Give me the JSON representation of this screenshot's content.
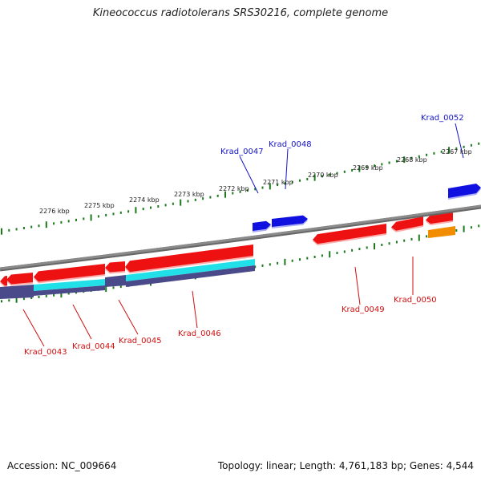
{
  "title": "Kineococcus radiotolerans SRS30216, complete genome",
  "footer": {
    "accession": "Accession: NC_009664",
    "summary": "Topology: linear; Length: 4,761,183 bp; Genes: 4,544"
  },
  "colors": {
    "backbone": "#8a8a8a",
    "tick": "#1a7a1a",
    "gene_forward": "#1010e0",
    "gene_reverse": "#ee1111",
    "cds_cyan": "#22e0e8",
    "cds_purple": "#4a4a8a",
    "gene_orange": "#f28c00",
    "label_forward": "#1414c8",
    "label_reverse": "#d01010"
  },
  "scale_labels": [
    "2276 kbp",
    "2275 kbp",
    "2274 kbp",
    "2273 kbp",
    "2272 kbp",
    "2271 kbp",
    "2270 kbp",
    "2269 kbp",
    "2268 kbp",
    "2267 kbp"
  ],
  "gene_labels": [
    {
      "text": "Krad_0047",
      "strand": "forward"
    },
    {
      "text": "Krad_0048",
      "strand": "forward"
    },
    {
      "text": "Krad_0052",
      "strand": "forward"
    },
    {
      "text": "Krad_0043",
      "strand": "reverse"
    },
    {
      "text": "Krad_0044",
      "strand": "reverse"
    },
    {
      "text": "Krad_0045",
      "strand": "reverse"
    },
    {
      "text": "Krad_0046",
      "strand": "reverse"
    },
    {
      "text": "Krad_0049",
      "strand": "reverse"
    },
    {
      "text": "Krad_0050",
      "strand": "reverse"
    }
  ]
}
